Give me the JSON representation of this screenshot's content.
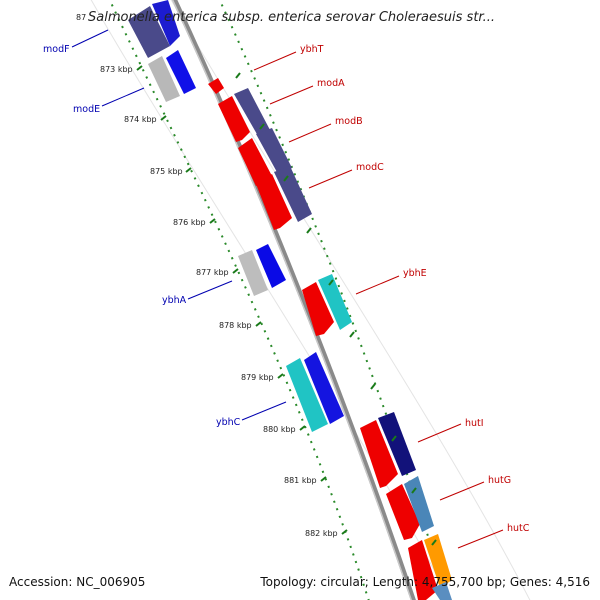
{
  "title": "Salmonella enterica subsp. enterica serovar Choleraesuis str...",
  "footer": {
    "accession": "Accession: NC_006905",
    "summary": "Topology: circular; Length: 4,755,700 bp; Genes: 4,516"
  },
  "ticks": [
    "87",
    "873 kbp",
    "874 kbp",
    "875 kbp",
    "876 kbp",
    "877 kbp",
    "878 kbp",
    "879 kbp",
    "880 kbp",
    "881 kbp",
    "882 kbp"
  ],
  "genes": {
    "forward": [
      "ybhT",
      "modA",
      "modB",
      "modC",
      "ybhE",
      "hutI",
      "hutG",
      "hutC"
    ],
    "reverse": [
      "modF",
      "modE",
      "ybhA",
      "ybhC"
    ]
  },
  "colors": {
    "forward_label": "#c00000",
    "reverse_label": "#0000b0",
    "backbone": "#8a8a8a",
    "tick": "#1a7a1a"
  }
}
